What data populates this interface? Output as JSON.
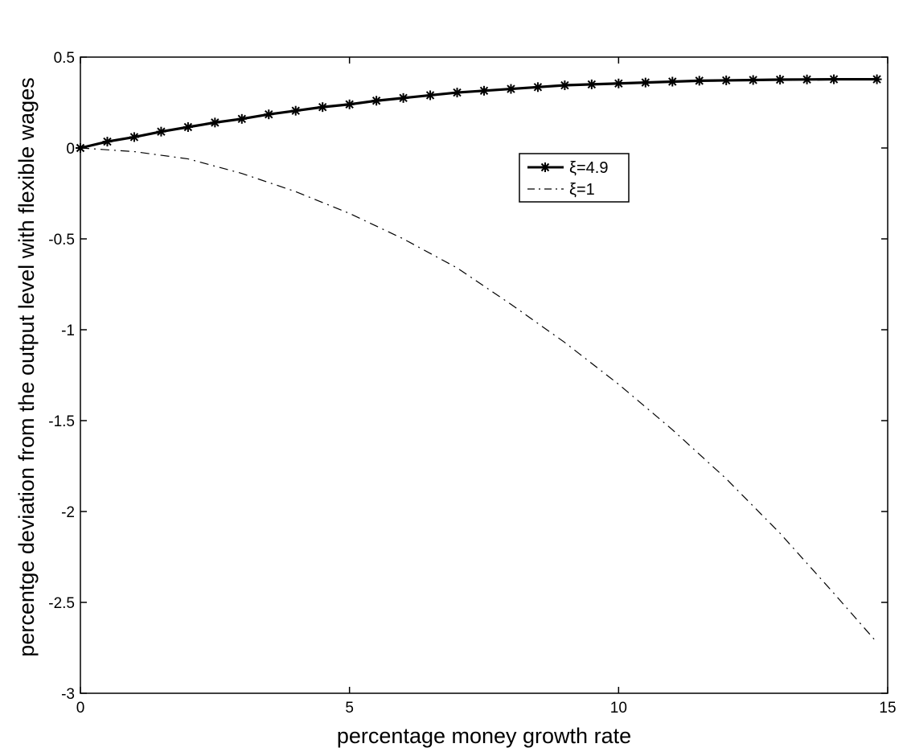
{
  "chart_data": {
    "type": "line",
    "xlabel": "percentage money growth rate",
    "ylabel": "percentge deviation from the output level with flexible wages",
    "xlim": [
      0,
      15
    ],
    "ylim": [
      -3,
      0.5
    ],
    "xticks": [
      "0",
      "5",
      "10",
      "15"
    ],
    "yticks": [
      "0.5",
      "0",
      "-0.5",
      "-1",
      "-1.5",
      "-2",
      "-2.5",
      "-3"
    ],
    "grid": false,
    "legend_position": "upper-center-right",
    "series": [
      {
        "name": "ξ=4.9",
        "style": "solid-star-markers",
        "color": "#000000",
        "x": [
          0,
          0.5,
          1,
          1.5,
          2,
          2.5,
          3,
          3.5,
          4,
          4.5,
          5,
          5.5,
          6,
          6.5,
          7,
          7.5,
          8,
          8.5,
          9,
          9.5,
          10,
          10.5,
          11,
          11.5,
          12,
          12.5,
          13,
          13.5,
          14,
          14.8
        ],
        "y": [
          0,
          0.035,
          0.06,
          0.09,
          0.115,
          0.14,
          0.16,
          0.185,
          0.205,
          0.225,
          0.24,
          0.26,
          0.275,
          0.29,
          0.305,
          0.315,
          0.325,
          0.335,
          0.345,
          0.35,
          0.355,
          0.36,
          0.365,
          0.37,
          0.372,
          0.374,
          0.376,
          0.377,
          0.378,
          0.378
        ]
      },
      {
        "name": "ξ=1",
        "style": "dash-dot",
        "color": "#000000",
        "x": [
          0,
          1,
          2,
          3,
          4,
          5,
          6,
          7,
          8,
          9,
          10,
          11,
          12,
          13,
          14,
          14.8
        ],
        "y": [
          0,
          -0.02,
          -0.06,
          -0.14,
          -0.24,
          -0.36,
          -0.5,
          -0.66,
          -0.86,
          -1.07,
          -1.3,
          -1.55,
          -1.82,
          -2.12,
          -2.45,
          -2.72
        ]
      }
    ]
  }
}
